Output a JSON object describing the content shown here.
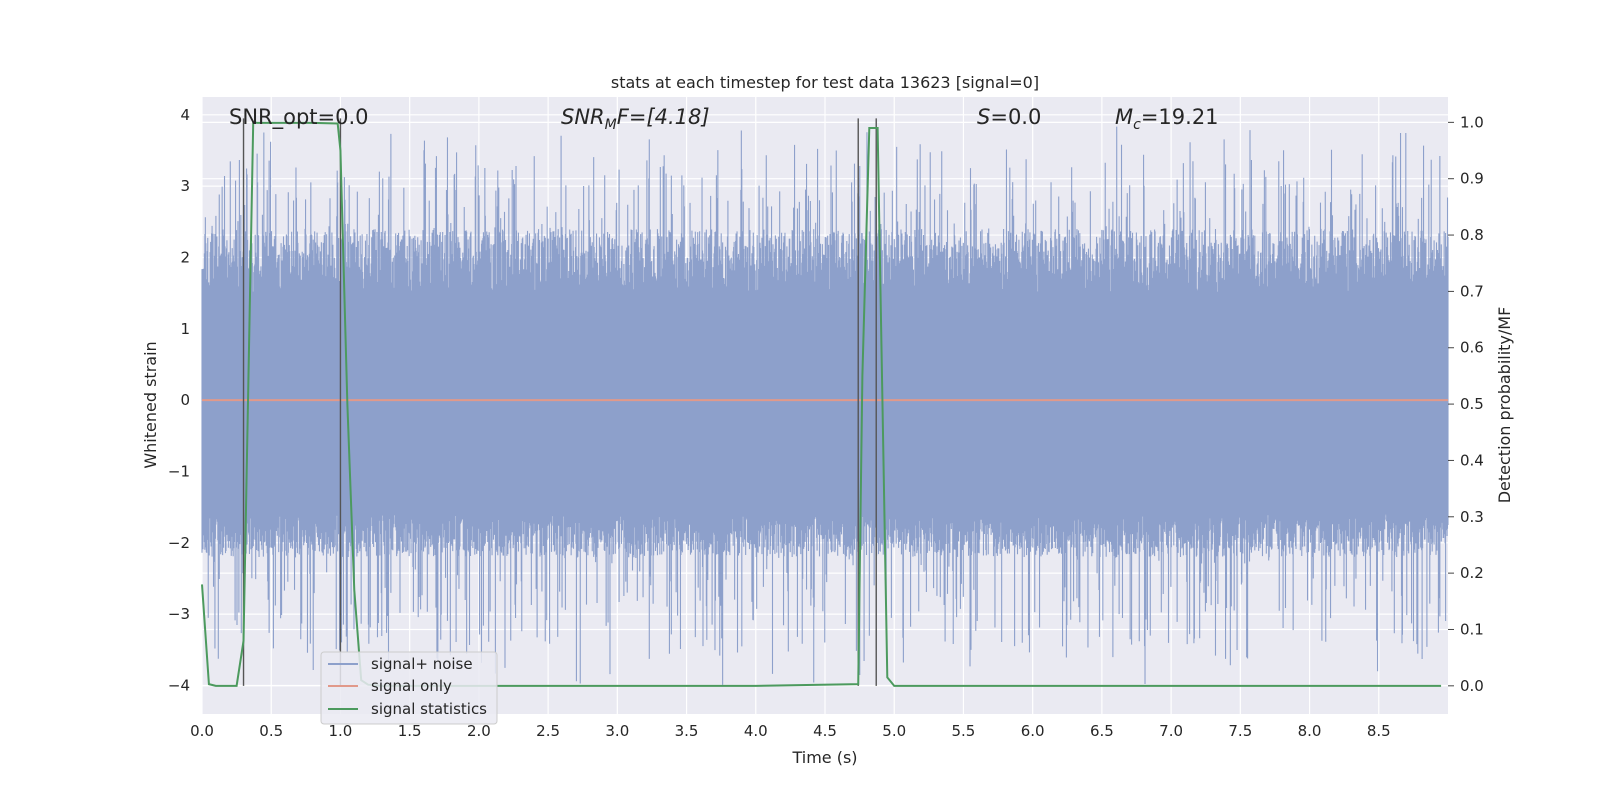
{
  "chart_data": {
    "type": "line",
    "title": "stats at each timestep for test data 13623 [signal=0]",
    "xlabel": "Time (s)",
    "ylabel_left": "Whitened strain",
    "ylabel_right": "Detection probability/MF",
    "xlim": [
      0,
      9.0
    ],
    "ylim_left": [
      -4.4,
      4.25
    ],
    "ylim_right": [
      -0.05,
      1.045
    ],
    "x_ticks": [
      0.0,
      0.5,
      1.0,
      1.5,
      2.0,
      2.5,
      3.0,
      3.5,
      4.0,
      4.5,
      5.0,
      5.5,
      6.0,
      6.5,
      7.0,
      7.5,
      8.0,
      8.5
    ],
    "x_tick_labels": [
      "0.0",
      "0.5",
      "1.0",
      "1.5",
      "2.0",
      "2.5",
      "3.0",
      "3.5",
      "4.0",
      "4.5",
      "5.0",
      "5.5",
      "6.0",
      "6.5",
      "7.0",
      "7.5",
      "8.0",
      "8.5"
    ],
    "y_left_ticks": [
      -4,
      -3,
      -2,
      -1,
      0,
      1,
      2,
      3,
      4
    ],
    "y_left_tick_labels": [
      "−4",
      "−3",
      "−2",
      "−1",
      "0",
      "1",
      "2",
      "3",
      "4"
    ],
    "y_right_ticks": [
      0.0,
      0.1,
      0.2,
      0.3,
      0.4,
      0.5,
      0.6,
      0.7,
      0.8,
      0.9,
      1.0
    ],
    "y_right_tick_labels": [
      "0.0",
      "0.1",
      "0.2",
      "0.3",
      "0.4",
      "0.5",
      "0.6",
      "0.7",
      "0.8",
      "0.9",
      "1.0"
    ],
    "grid": true,
    "legend_position": "lower-left",
    "noise_band": {
      "core_min": -1.6,
      "core_max": 1.5,
      "peak_max": 3.88,
      "peak_min": -4.0
    },
    "series": [
      {
        "name": "signal+ noise",
        "axis": "left",
        "color": "#8da0cb",
        "description_values": "dense whitened noise spanning approx -4.0 to 3.9"
      },
      {
        "name": "signal only",
        "axis": "left",
        "color": "#e1998a",
        "x": [
          0,
          9.0
        ],
        "y": [
          0,
          0
        ]
      },
      {
        "name": "signal statistics",
        "axis": "right",
        "color": "#4c9a5e",
        "x": [
          0.0,
          0.05,
          0.1,
          0.25,
          0.3,
          0.37,
          0.4,
          0.6,
          0.8,
          0.98,
          1.0,
          1.05,
          1.1,
          1.15,
          1.2,
          1.3,
          2.0,
          3.0,
          4.0,
          4.74,
          4.77,
          4.82,
          4.88,
          4.95,
          5.0,
          5.5,
          6.0,
          7.0,
          8.0,
          8.95
        ],
        "y": [
          0.18,
          0.003,
          0.0,
          0.0,
          0.08,
          1.0,
          0.999,
          0.999,
          0.999,
          0.998,
          0.95,
          0.5,
          0.17,
          0.01,
          0.002,
          0.0,
          0.0,
          0.0,
          0.0,
          0.003,
          0.55,
          0.99,
          0.99,
          0.015,
          0.0,
          0.0,
          0.0,
          0.0,
          0.0,
          0.0
        ]
      }
    ],
    "vertical_markers": [
      {
        "x": 0.3,
        "y_from": 0.0,
        "y_to": 1.0
      },
      {
        "x": 1.0,
        "y_from": 0.0,
        "y_to": 1.0
      },
      {
        "x": 4.74,
        "y_from": 0.0,
        "y_to": 1.0
      },
      {
        "x": 4.87,
        "y_from": 0.0,
        "y_to": 1.0
      }
    ],
    "annotations": [
      {
        "id": "snr-opt",
        "text": "SNR_opt=0.0"
      },
      {
        "id": "snr-mf",
        "text_main": "SNR",
        "text_sub": "M",
        "text_rest": "F=[4.18]"
      },
      {
        "id": "s-val",
        "text_main": "S",
        "text_rest": "=0.0"
      },
      {
        "id": "mc-val",
        "text_main": "M",
        "text_sub": "c",
        "text_rest": "=19.21"
      }
    ]
  }
}
